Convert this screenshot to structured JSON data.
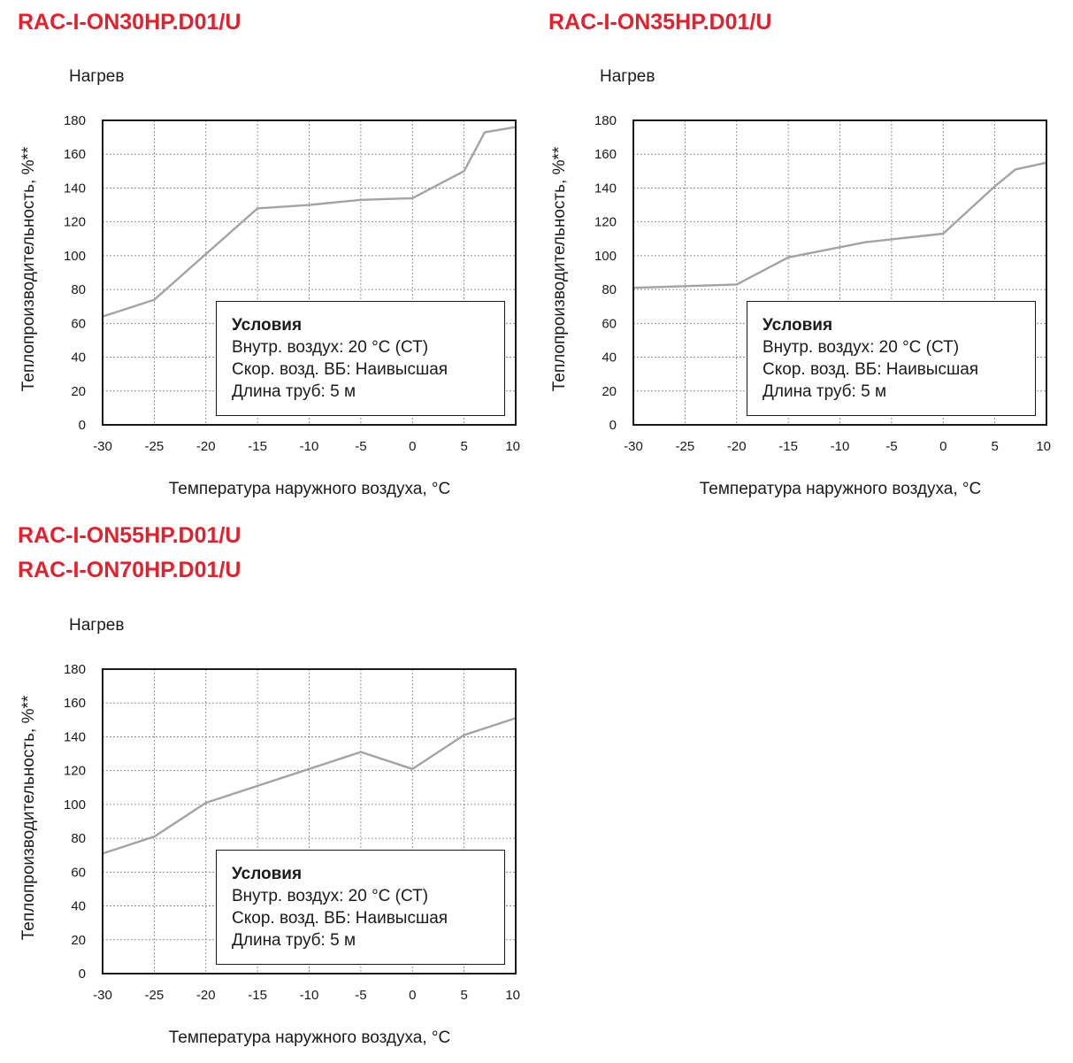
{
  "models": [
    "RAC-I-ON30HP.D01/U",
    "RAC-I-ON35HP.D01/U",
    "RAC-I-ON55HP.D01/U",
    "RAC-I-ON70HP.D01/U"
  ],
  "legend": {
    "title": "Условия",
    "lines": [
      "Внутр. воздух: 20 °C (СТ)",
      "Скор. возд. ВБ: Наивысшая",
      "Длина труб: 5 м"
    ]
  },
  "colors": {
    "model_title": "#e3202b",
    "series_line": "#a3a3a3",
    "grid": "#7a7a7a",
    "frame": "#1a1a1a"
  },
  "chart_data": [
    {
      "type": "line",
      "model": "RAC-I-ON30HP.D01/U",
      "subtitle": "Нагрев",
      "xlabel": "Температура наружного воздуха, °C",
      "ylabel": "Теплопроизводительность, %**",
      "xticks": [
        -30,
        -25,
        -20,
        -15,
        -10,
        -5,
        0,
        5,
        10
      ],
      "yticks": [
        0,
        20,
        40,
        60,
        80,
        100,
        120,
        140,
        160,
        180
      ],
      "xlim": [
        -30,
        10
      ],
      "ylim": [
        0,
        180
      ],
      "grid": true,
      "legend_position": "bottom-right",
      "x": [
        -30,
        -25,
        -20,
        -15,
        -10,
        -5,
        0,
        5,
        7,
        10
      ],
      "values": [
        64,
        74,
        101,
        128,
        130,
        133,
        134,
        150,
        173,
        176
      ]
    },
    {
      "type": "line",
      "model": "RAC-I-ON35HP.D01/U",
      "subtitle": "Нагрев",
      "xlabel": "Температура наружного воздуха, °C",
      "ylabel": "Теплопроизводительность, %**",
      "xticks": [
        -30,
        -25,
        -20,
        -15,
        -10,
        -5,
        0,
        5,
        10
      ],
      "yticks": [
        0,
        20,
        40,
        60,
        80,
        100,
        120,
        140,
        160,
        180
      ],
      "xlim": [
        -30,
        10
      ],
      "ylim": [
        0,
        180
      ],
      "grid": true,
      "legend_position": "bottom-right",
      "x": [
        -30,
        -20,
        -15,
        -7.5,
        0,
        5,
        7,
        10
      ],
      "values": [
        81,
        83,
        99,
        108,
        113,
        141,
        151,
        155
      ]
    },
    {
      "type": "line",
      "model": "RAC-I-ON55HP.D01/U, RAC-I-ON70HP.D01/U",
      "subtitle": "Нагрев",
      "xlabel": "Температура наружного воздуха, °C",
      "ylabel": "Теплопроизводительность, %**",
      "xticks": [
        -30,
        -25,
        -20,
        -15,
        -10,
        -5,
        0,
        5,
        10
      ],
      "yticks": [
        0,
        20,
        40,
        60,
        80,
        100,
        120,
        140,
        160,
        180
      ],
      "xlim": [
        -30,
        10
      ],
      "ylim": [
        0,
        180
      ],
      "grid": true,
      "legend_position": "bottom-right",
      "x": [
        -30,
        -25,
        -20,
        -15,
        -10,
        -5,
        0,
        5,
        10
      ],
      "values": [
        71,
        81,
        101,
        111,
        121,
        131,
        121,
        141,
        151
      ]
    }
  ]
}
